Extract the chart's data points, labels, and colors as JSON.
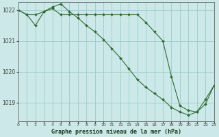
{
  "series1": {
    "x": [
      0,
      1,
      2,
      3,
      4,
      5,
      6,
      7,
      8,
      9,
      10,
      11,
      12,
      13,
      14,
      15,
      16,
      17,
      18,
      19,
      20,
      21,
      22,
      23
    ],
    "y": [
      1022.0,
      1021.85,
      1021.85,
      1021.95,
      1022.05,
      1021.85,
      1021.85,
      1021.85,
      1021.85,
      1021.85,
      1021.85,
      1021.85,
      1021.85,
      1021.85,
      1021.85,
      1021.6,
      1021.3,
      1021.0,
      1019.85,
      1018.9,
      1018.75,
      1018.7,
      1019.1,
      1019.55
    ]
  },
  "series2": {
    "x": [
      0,
      1,
      2,
      3,
      4,
      5,
      6,
      7,
      8,
      9,
      10,
      11,
      12,
      13,
      14,
      15,
      16,
      17,
      18,
      19,
      20,
      21,
      22,
      23
    ],
    "y": [
      1022.0,
      1021.85,
      1021.5,
      1021.95,
      1022.1,
      1022.2,
      1021.95,
      1021.75,
      1021.5,
      1021.3,
      1021.05,
      1020.75,
      1020.45,
      1020.1,
      1019.75,
      1019.5,
      1019.3,
      1019.1,
      1018.85,
      1018.7,
      1018.6,
      1018.7,
      1018.95,
      1019.55
    ]
  },
  "line_color": "#2d6a2d",
  "bg_color": "#cce8e8",
  "grid_color": "#99cccc",
  "axis_color": "#444444",
  "ylabel_ticks": [
    1019,
    1020,
    1021,
    1022
  ],
  "xlabel_ticks": [
    0,
    1,
    2,
    3,
    4,
    5,
    6,
    7,
    8,
    9,
    10,
    11,
    12,
    13,
    14,
    15,
    16,
    17,
    18,
    19,
    20,
    21,
    22,
    23
  ],
  "xlabel": "Graphe pression niveau de la mer (hPa)",
  "xlim": [
    0,
    23
  ],
  "ylim": [
    1018.4,
    1022.25
  ]
}
